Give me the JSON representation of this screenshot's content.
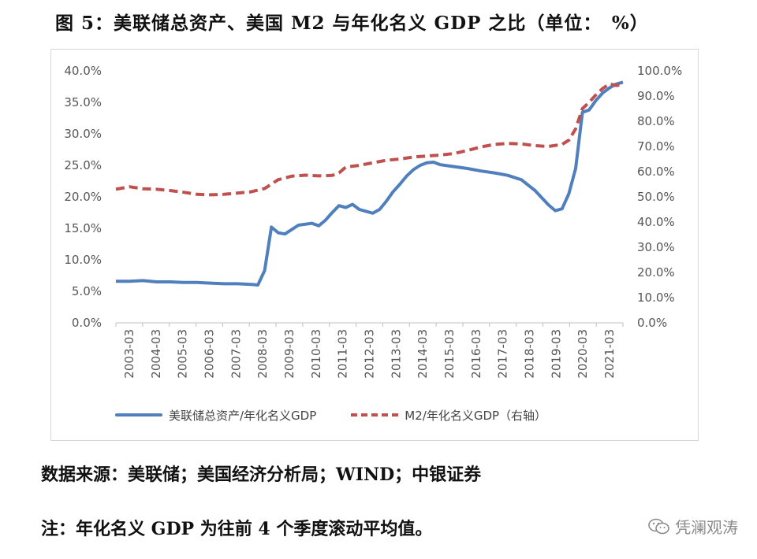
{
  "figure_title": "图 5：美联储总资产、美国 M2 与年化名义 GDP 之比（单位：　%）",
  "source_text": "数据来源：美联储；美国经济分析局；WIND；中银证券",
  "note_text": "注：年化名义 GDP 为往前 4 个季度滚动平均值。",
  "brand_text": "凭澜观涛",
  "icon": "wechat-icon",
  "colors": {
    "fed": "#4f7fbd",
    "m2": "#c0504d",
    "axis": "#bfbfbf"
  },
  "chart_data": {
    "type": "line",
    "title": "图 5：美联储总资产、美国 M2 与年化名义 GDP 之比（单位：　%）",
    "x_tick_labels": [
      "2003-03",
      "2004-03",
      "2005-03",
      "2006-03",
      "2007-03",
      "2008-03",
      "2009-03",
      "2010-03",
      "2011-03",
      "2012-03",
      "2013-03",
      "2014-03",
      "2015-03",
      "2016-03",
      "2017-03",
      "2018-03",
      "2019-03",
      "2020-03",
      "2021-03"
    ],
    "x_range": [
      "2003-03",
      "2021-12"
    ],
    "y_left": {
      "ticks": [
        "0.0%",
        "5.0%",
        "10.0%",
        "15.0%",
        "20.0%",
        "25.0%",
        "30.0%",
        "35.0%",
        "40.0%"
      ],
      "range": [
        0,
        40
      ]
    },
    "y_right": {
      "ticks": [
        "0.0%",
        "10.0%",
        "20.0%",
        "30.0%",
        "40.0%",
        "50.0%",
        "60.0%",
        "70.0%",
        "80.0%",
        "90.0%",
        "100.0%"
      ],
      "range": [
        0,
        100
      ]
    },
    "grid": false,
    "legend_position": "bottom",
    "series": [
      {
        "name": "美联储总资产/年化名义GDP",
        "axis": "left",
        "style": "solid",
        "color": "#4f7fbd",
        "points": [
          [
            "2003-03",
            6.6
          ],
          [
            "2003-09",
            6.6
          ],
          [
            "2004-03",
            6.7
          ],
          [
            "2004-09",
            6.5
          ],
          [
            "2005-03",
            6.5
          ],
          [
            "2005-09",
            6.4
          ],
          [
            "2006-03",
            6.4
          ],
          [
            "2006-09",
            6.3
          ],
          [
            "2007-03",
            6.2
          ],
          [
            "2007-09",
            6.2
          ],
          [
            "2008-03",
            6.1
          ],
          [
            "2008-06",
            6.0
          ],
          [
            "2008-09",
            8.3
          ],
          [
            "2008-12",
            15.2
          ],
          [
            "2009-03",
            14.3
          ],
          [
            "2009-06",
            14.1
          ],
          [
            "2009-09",
            14.8
          ],
          [
            "2009-12",
            15.5
          ],
          [
            "2010-06",
            15.8
          ],
          [
            "2010-09",
            15.4
          ],
          [
            "2010-12",
            16.3
          ],
          [
            "2011-03",
            17.5
          ],
          [
            "2011-06",
            18.6
          ],
          [
            "2011-09",
            18.3
          ],
          [
            "2011-12",
            18.8
          ],
          [
            "2012-03",
            18.0
          ],
          [
            "2012-06",
            17.7
          ],
          [
            "2012-09",
            17.4
          ],
          [
            "2012-12",
            18.0
          ],
          [
            "2013-03",
            19.3
          ],
          [
            "2013-06",
            20.8
          ],
          [
            "2013-09",
            22.0
          ],
          [
            "2013-12",
            23.3
          ],
          [
            "2014-03",
            24.3
          ],
          [
            "2014-06",
            25.0
          ],
          [
            "2014-09",
            25.4
          ],
          [
            "2014-12",
            25.5
          ],
          [
            "2015-03",
            25.1
          ],
          [
            "2015-09",
            24.8
          ],
          [
            "2016-03",
            24.5
          ],
          [
            "2016-09",
            24.1
          ],
          [
            "2017-03",
            23.8
          ],
          [
            "2017-09",
            23.4
          ],
          [
            "2018-03",
            22.7
          ],
          [
            "2018-09",
            21.0
          ],
          [
            "2019-03",
            18.7
          ],
          [
            "2019-06",
            17.8
          ],
          [
            "2019-09",
            18.1
          ],
          [
            "2019-12",
            20.5
          ],
          [
            "2020-03",
            24.5
          ],
          [
            "2020-06",
            33.4
          ],
          [
            "2020-09",
            33.8
          ],
          [
            "2020-12",
            35.3
          ],
          [
            "2021-03",
            36.5
          ],
          [
            "2021-06",
            37.3
          ],
          [
            "2021-09",
            37.9
          ],
          [
            "2021-12",
            38.2
          ]
        ]
      },
      {
        "name": "M2/年化名义GDP（右轴）",
        "axis": "right",
        "style": "dashed",
        "color": "#c0504d",
        "points": [
          [
            "2003-03",
            53.0
          ],
          [
            "2003-09",
            54.0
          ],
          [
            "2004-03",
            53.2
          ],
          [
            "2004-09",
            53.0
          ],
          [
            "2005-03",
            52.5
          ],
          [
            "2005-09",
            51.8
          ],
          [
            "2006-03",
            51.0
          ],
          [
            "2006-09",
            50.8
          ],
          [
            "2007-03",
            51.0
          ],
          [
            "2007-09",
            51.5
          ],
          [
            "2008-03",
            52.0
          ],
          [
            "2008-09",
            53.3
          ],
          [
            "2009-03",
            56.8
          ],
          [
            "2009-09",
            58.2
          ],
          [
            "2010-03",
            58.6
          ],
          [
            "2010-09",
            58.3
          ],
          [
            "2011-03",
            58.5
          ],
          [
            "2011-06",
            59.5
          ],
          [
            "2011-09",
            61.8
          ],
          [
            "2012-03",
            62.5
          ],
          [
            "2012-09",
            63.5
          ],
          [
            "2013-03",
            64.5
          ],
          [
            "2013-09",
            65.0
          ],
          [
            "2014-03",
            65.8
          ],
          [
            "2014-09",
            66.2
          ],
          [
            "2015-03",
            66.6
          ],
          [
            "2015-09",
            67.2
          ],
          [
            "2016-03",
            68.4
          ],
          [
            "2016-09",
            69.8
          ],
          [
            "2017-03",
            70.8
          ],
          [
            "2017-09",
            71.2
          ],
          [
            "2018-03",
            71.0
          ],
          [
            "2018-09",
            70.3
          ],
          [
            "2019-03",
            70.0
          ],
          [
            "2019-09",
            70.8
          ],
          [
            "2019-12",
            72.5
          ],
          [
            "2020-03",
            77.0
          ],
          [
            "2020-06",
            85.0
          ],
          [
            "2020-09",
            87.5
          ],
          [
            "2020-12",
            90.5
          ],
          [
            "2021-03",
            93.0
          ],
          [
            "2021-06",
            94.8
          ],
          [
            "2021-09",
            94.2
          ],
          [
            "2021-12",
            94.6
          ]
        ]
      }
    ]
  }
}
